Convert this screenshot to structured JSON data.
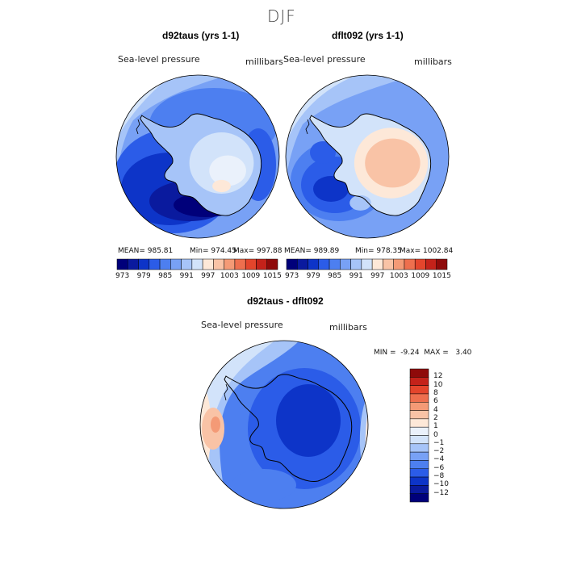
{
  "figure": {
    "title": "DJF"
  },
  "panels": [
    {
      "title": "d92taus (yrs 1-1)",
      "variable": "Sea-level pressure",
      "units": "millibars",
      "stats": {
        "mean": "MEAN= 985.81",
        "min": "Min= 974.45",
        "max": "Max= 997.88"
      }
    },
    {
      "title": "dflt092 (yrs 1-1)",
      "variable": "Sea-level pressure",
      "units": "millibars",
      "stats": {
        "mean": "MEAN= 989.89",
        "min": "Min= 978.35",
        "max": "Max= 1002.84"
      }
    },
    {
      "title": "d92taus - dflt092",
      "variable": "Sea-level pressure",
      "units": "millibars",
      "stats": {
        "minmax": "MIN =  -9.24  MAX =   3.40"
      }
    }
  ],
  "colorbar_top": {
    "ticks": [
      "973",
      "979",
      "985",
      "991",
      "997",
      "1003",
      "1009",
      "1015"
    ],
    "colors": [
      "#00007a",
      "#0a1a9e",
      "#0d34c8",
      "#2b5ce8",
      "#4d7ff0",
      "#78a1f5",
      "#a6c4f8",
      "#d2e3fa",
      "#fde8d8",
      "#f9c3a6",
      "#f49a76",
      "#ee6f4e",
      "#e4452c",
      "#c4221a",
      "#8f0a0a"
    ]
  },
  "colorbar_diff": {
    "ticks": [
      "12",
      "10",
      "8",
      "6",
      "4",
      "2",
      "1",
      "0",
      "−1",
      "−2",
      "−4",
      "−6",
      "−8",
      "−10",
      "−12"
    ],
    "colors": [
      "#8f0a0a",
      "#c4221a",
      "#e4452c",
      "#ee6f4e",
      "#f49a76",
      "#f9c3a6",
      "#fde8d8",
      "#eaf1fb",
      "#d2e3fa",
      "#a6c4f8",
      "#78a1f5",
      "#4d7ff0",
      "#2b5ce8",
      "#0d34c8",
      "#0a1a9e",
      "#00007a"
    ]
  },
  "chart_data": {
    "type": "heatmap",
    "title": "DJF",
    "field": "Sea-level pressure",
    "units": "millibars",
    "projection": "south polar stereographic",
    "maps": [
      {
        "name": "d92taus (yrs 1-1)",
        "mean": 985.81,
        "min": 974.45,
        "max": 997.88,
        "contour_levels": [
          973,
          976,
          979,
          982,
          985,
          988,
          991,
          994,
          997,
          1000,
          1003,
          1006,
          1009,
          1012,
          1015
        ]
      },
      {
        "name": "dflt092 (yrs 1-1)",
        "mean": 989.89,
        "min": 978.35,
        "max": 1002.84,
        "contour_levels": [
          973,
          976,
          979,
          982,
          985,
          988,
          991,
          994,
          997,
          1000,
          1003,
          1006,
          1009,
          1012,
          1015
        ]
      },
      {
        "name": "d92taus - dflt092",
        "min": -9.24,
        "max": 3.4,
        "contour_levels": [
          -12,
          -10,
          -8,
          -6,
          -4,
          -2,
          -1,
          0,
          1,
          2,
          4,
          6,
          8,
          10,
          12
        ]
      }
    ]
  }
}
